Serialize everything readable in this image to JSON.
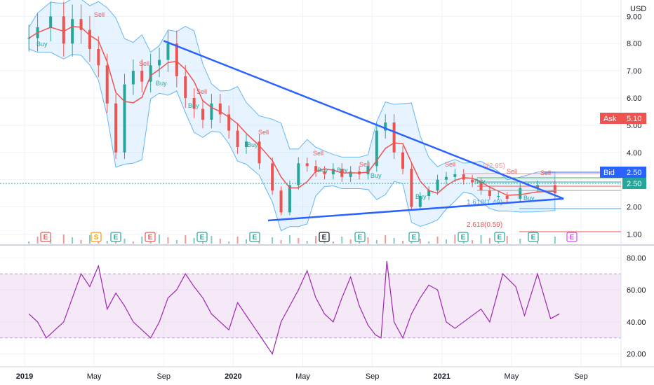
{
  "currency": "USD",
  "colors": {
    "up": "#26a69a",
    "down": "#ef5350",
    "trendline": "#2962ff",
    "bollinger": "#64b5f6",
    "ma": "#ef5350",
    "rsi": "#9c27b0",
    "ask": "#ef5350",
    "bid": "#2962ff"
  },
  "badges": {
    "ask_label": "Ask",
    "ask_value": "5.10",
    "bid_label": "Bid",
    "bid_value": "2.50",
    "last_value": "2.50"
  },
  "fib_labels": [
    "0(2.95)",
    "1.618(1.49)",
    "2.618(0.59)"
  ],
  "events": [
    {
      "letter": "E",
      "kind": "earnings",
      "color": "#ef5350"
    },
    {
      "letter": "S",
      "kind": "split",
      "color": "#ff9800"
    },
    {
      "letter": "E",
      "kind": "earnings",
      "color": "#26a69a"
    },
    {
      "letter": "E",
      "kind": "earnings",
      "color": "#ef5350"
    },
    {
      "letter": "E",
      "kind": "earnings",
      "color": "#26a69a"
    },
    {
      "letter": "E",
      "kind": "earnings",
      "color": "#26a69a"
    },
    {
      "letter": "E",
      "kind": "earnings",
      "color": "#131722"
    },
    {
      "letter": "E",
      "kind": "earnings",
      "color": "#26a69a"
    },
    {
      "letter": "E",
      "kind": "earnings",
      "color": "#26a69a"
    },
    {
      "letter": "E",
      "kind": "earnings",
      "color": "#26a69a"
    },
    {
      "letter": "E",
      "kind": "earnings",
      "color": "#26a69a"
    },
    {
      "letter": "E",
      "kind": "earnings",
      "color": "#26a69a"
    },
    {
      "letter": "E",
      "kind": "earnings",
      "color": "#e040fb"
    }
  ],
  "signal_labels": {
    "buy": "Buy",
    "sell": "Sell"
  },
  "chart_data": [
    {
      "type": "candlestick",
      "ylim": [
        0.6,
        9.6
      ],
      "yticks": [
        "9.00",
        "8.00",
        "7.00",
        "6.00",
        "5.00",
        "4.00",
        "3.00",
        "2.00",
        "1.00"
      ],
      "ytick_values": [
        9,
        8,
        7,
        6,
        5,
        4,
        3,
        2,
        1
      ],
      "xticks": [
        "2019",
        "May",
        "Sep",
        "2020",
        "May",
        "Sep",
        "2021",
        "May",
        "Sep"
      ],
      "xtick_dates": [
        "2019-01",
        "2019-05",
        "2019-09",
        "2020-01",
        "2020-05",
        "2020-09",
        "2021-01",
        "2021-05",
        "2021-09"
      ],
      "series": [
        {
          "name": "",
          "values": [
            8.2,
            8.6,
            9.0,
            8.0,
            8.9,
            8.5,
            7.8,
            7.2,
            5.8,
            4.0,
            6.5,
            7.0,
            6.6,
            7.2,
            7.4,
            8.0,
            6.8,
            6.0,
            5.6,
            5.2,
            5.8,
            5.4,
            4.8,
            4.2,
            4.4,
            3.6,
            2.6,
            1.8,
            2.8,
            3.6,
            3.5,
            3.3,
            3.2,
            3.4,
            3.1,
            3.3,
            3.2,
            3.5,
            4.8,
            5.1,
            4.0,
            3.4,
            2.0,
            2.4,
            2.6,
            3.0,
            3.1,
            3.2,
            3.0,
            2.9,
            2.6,
            2.4,
            2.4,
            2.3,
            2.7,
            2.8,
            2.5
          ],
          "dates": [
            "2019-01",
            "2019-01",
            "2019-02",
            "2019-03",
            "2019-03",
            "2019-04",
            "2019-04",
            "2019-05",
            "2019-05",
            "2019-06",
            "2019-06",
            "2019-07",
            "2019-07",
            "2019-08",
            "2019-08",
            "2019-09",
            "2019-09",
            "2019-10",
            "2019-10",
            "2019-11",
            "2019-11",
            "2019-12",
            "2019-12",
            "2020-01",
            "2020-01",
            "2020-02",
            "2020-03",
            "2020-03",
            "2020-04",
            "2020-04",
            "2020-05",
            "2020-05",
            "2020-06",
            "2020-06",
            "2020-07",
            "2020-07",
            "2020-08",
            "2020-08",
            "2020-09",
            "2020-09",
            "2020-10",
            "2020-10",
            "2020-11",
            "2020-11",
            "2020-12",
            "2020-12",
            "2021-01",
            "2021-01",
            "2021-02",
            "2021-02",
            "2021-03",
            "2021-03",
            "2021-04",
            "2021-04",
            "2021-05",
            "2021-06",
            "2021-07"
          ]
        }
      ],
      "trendlines": [
        {
          "from": [
            "2019-09",
            8.1
          ],
          "to": [
            "2021-08",
            2.3
          ]
        },
        {
          "from": [
            "2020-03",
            1.5
          ],
          "to": [
            "2021-08",
            2.3
          ]
        }
      ]
    },
    {
      "type": "line",
      "ylim": [
        12,
        88
      ],
      "yticks": [
        "80.00",
        "60.00",
        "40.00",
        "20.00"
      ],
      "ytick_values": [
        80,
        60,
        40,
        20
      ],
      "bands": [
        30,
        70
      ],
      "series": [
        {
          "name": "",
          "values": [
            45,
            40,
            30,
            35,
            40,
            55,
            70,
            62,
            75,
            48,
            58,
            50,
            40,
            35,
            30,
            40,
            55,
            60,
            70,
            62,
            55,
            45,
            40,
            35,
            52,
            44,
            36,
            28,
            20,
            40,
            50,
            60,
            72,
            55,
            45,
            40,
            55,
            68,
            50,
            38,
            32,
            30,
            78,
            40,
            30,
            45,
            55,
            63,
            60,
            40,
            36,
            42,
            48,
            40,
            70,
            62,
            44,
            70,
            42,
            45
          ],
          "dates": [
            "2019-01",
            "2019-01",
            "2019-02",
            "2019-02",
            "2019-03",
            "2019-03",
            "2019-04",
            "2019-04",
            "2019-05",
            "2019-05",
            "2019-06",
            "2019-06",
            "2019-07",
            "2019-07",
            "2019-08",
            "2019-08",
            "2019-09",
            "2019-09",
            "2019-10",
            "2019-10",
            "2019-11",
            "2019-11",
            "2019-12",
            "2019-12",
            "2020-01",
            "2020-01",
            "2020-02",
            "2020-02",
            "2020-03",
            "2020-03",
            "2020-04",
            "2020-04",
            "2020-05",
            "2020-05",
            "2020-06",
            "2020-06",
            "2020-07",
            "2020-07",
            "2020-08",
            "2020-08",
            "2020-09",
            "2020-09",
            "2020-09",
            "2020-10",
            "2020-10",
            "2020-11",
            "2020-11",
            "2020-12",
            "2020-12",
            "2021-01",
            "2021-01",
            "2021-02",
            "2021-03",
            "2021-03",
            "2021-04",
            "2021-05",
            "2021-05",
            "2021-06",
            "2021-07",
            "2021-07"
          ]
        }
      ]
    }
  ]
}
